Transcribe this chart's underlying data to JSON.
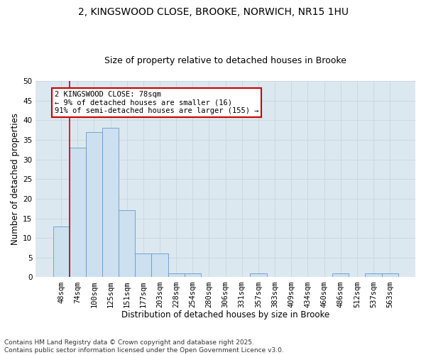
{
  "title_line1": "2, KINGSWOOD CLOSE, BROOKE, NORWICH, NR15 1HU",
  "title_line2": "Size of property relative to detached houses in Brooke",
  "xlabel": "Distribution of detached houses by size in Brooke",
  "ylabel": "Number of detached properties",
  "categories": [
    "48sqm",
    "74sqm",
    "100sqm",
    "125sqm",
    "151sqm",
    "177sqm",
    "203sqm",
    "228sqm",
    "254sqm",
    "280sqm",
    "306sqm",
    "331sqm",
    "357sqm",
    "383sqm",
    "409sqm",
    "434sqm",
    "460sqm",
    "486sqm",
    "512sqm",
    "537sqm",
    "563sqm"
  ],
  "values": [
    13,
    33,
    37,
    38,
    17,
    6,
    6,
    1,
    1,
    0,
    0,
    0,
    1,
    0,
    0,
    0,
    0,
    1,
    0,
    1,
    1
  ],
  "bar_color": "#cce0f0",
  "bar_edge_color": "#6699cc",
  "vline_color": "#cc0000",
  "vline_x_index": 1,
  "annotation_text": "2 KINGSWOOD CLOSE: 78sqm\n← 9% of detached houses are smaller (16)\n91% of semi-detached houses are larger (155) →",
  "annotation_box_edgecolor": "#cc0000",
  "annotation_bg": "#ffffff",
  "ylim": [
    0,
    50
  ],
  "yticks": [
    0,
    5,
    10,
    15,
    20,
    25,
    30,
    35,
    40,
    45,
    50
  ],
  "grid_color": "#c8d4e0",
  "plot_bg_color": "#dce8f0",
  "footer": "Contains HM Land Registry data © Crown copyright and database right 2025.\nContains public sector information licensed under the Open Government Licence v3.0.",
  "title_fontsize": 10,
  "subtitle_fontsize": 9,
  "axis_label_fontsize": 8.5,
  "tick_fontsize": 7.5,
  "annotation_fontsize": 7.5,
  "footer_fontsize": 6.5
}
